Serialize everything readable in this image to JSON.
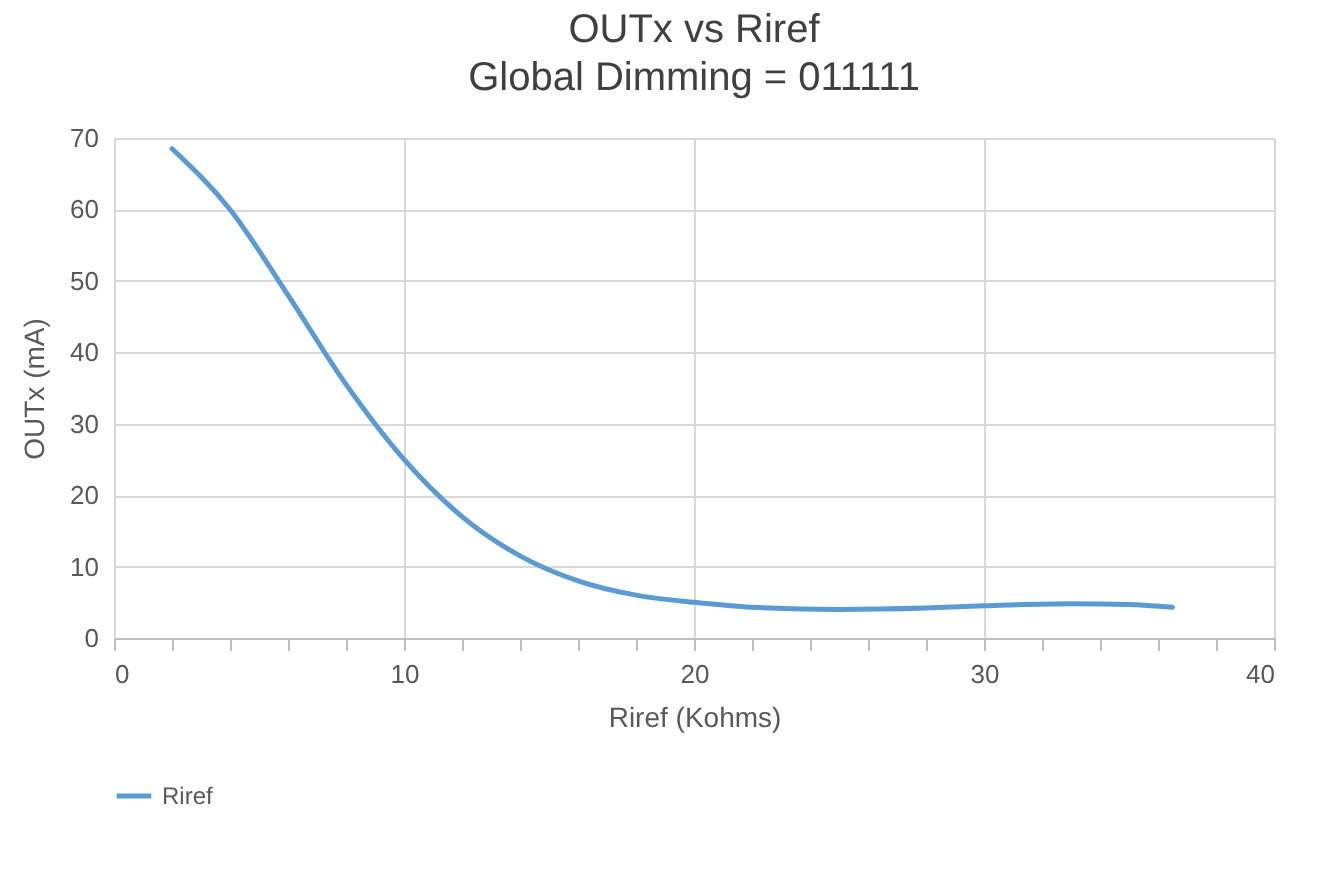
{
  "chart_data": {
    "type": "line",
    "title": "OUTx vs Riref",
    "subtitle": "Global Dimming = 011111",
    "xlabel": "Riref  (Kohms)",
    "ylabel": "OUTx  (mA)",
    "x": [
      2,
      4,
      6,
      8,
      10,
      12,
      14,
      16,
      18,
      20,
      22,
      25,
      28,
      30,
      33,
      35,
      36.5
    ],
    "series": [
      {
        "name": "Riref",
        "color": "#5b9bd5",
        "values": [
          68.5,
          60,
          48,
          35.5,
          25,
          17,
          11.5,
          8,
          6,
          5,
          4.3,
          4,
          4.2,
          4.5,
          4.8,
          4.7,
          4.3
        ]
      }
    ],
    "xlim": [
      0,
      40
    ],
    "ylim": [
      0,
      70
    ],
    "xticks": [
      0,
      {
        "value": 2,
        "label": null
      },
      {
        "value": 4,
        "label": null
      },
      {
        "value": 6,
        "label": null
      },
      {
        "value": 8,
        "label": null
      },
      10,
      {
        "value": 12,
        "label": null
      },
      {
        "value": 14,
        "label": null
      },
      {
        "value": 16,
        "label": null
      },
      {
        "value": 18,
        "label": null
      },
      20,
      {
        "value": 22,
        "label": null
      },
      {
        "value": 24,
        "label": null
      },
      {
        "value": 26,
        "label": null
      },
      {
        "value": 28,
        "label": null
      },
      30,
      {
        "value": 32,
        "label": null
      },
      {
        "value": 34,
        "label": null
      },
      {
        "value": 36,
        "label": null
      },
      {
        "value": 38,
        "label": null
      },
      40
    ],
    "yticks": [
      0,
      10,
      20,
      30,
      40,
      50,
      60,
      70
    ],
    "grid": true,
    "legend": "bottom",
    "marker": "none",
    "line_style": "solid"
  }
}
